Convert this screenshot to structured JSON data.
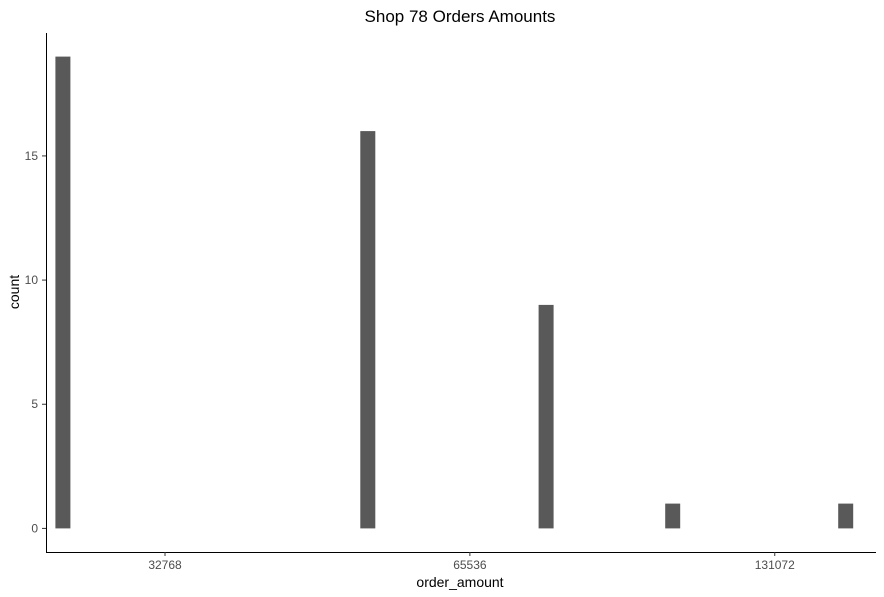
{
  "chart_data": {
    "type": "bar",
    "title": "Shop 78 Orders Amounts",
    "xlabel": "order_amount",
    "ylabel": "count",
    "x_scale": "log2",
    "x_ticks": [
      {
        "value": 32768,
        "label": "32768"
      },
      {
        "value": 65536,
        "label": "65536"
      },
      {
        "value": 131072,
        "label": "131072"
      }
    ],
    "y_ticks": [
      {
        "value": 0,
        "label": "0"
      },
      {
        "value": 5,
        "label": "5"
      },
      {
        "value": 10,
        "label": "10"
      },
      {
        "value": 15,
        "label": "15"
      }
    ],
    "xlim": [
      25000,
      165000
    ],
    "ylim": [
      -0.95,
      19.95
    ],
    "bars": [
      {
        "x": 25980,
        "count": 19
      },
      {
        "x": 51960,
        "count": 16
      },
      {
        "x": 77940,
        "count": 9
      },
      {
        "x": 103920,
        "count": 1
      },
      {
        "x": 154000,
        "count": 1
      }
    ],
    "bar_color": "#595959",
    "grid": false,
    "legend": "none"
  }
}
